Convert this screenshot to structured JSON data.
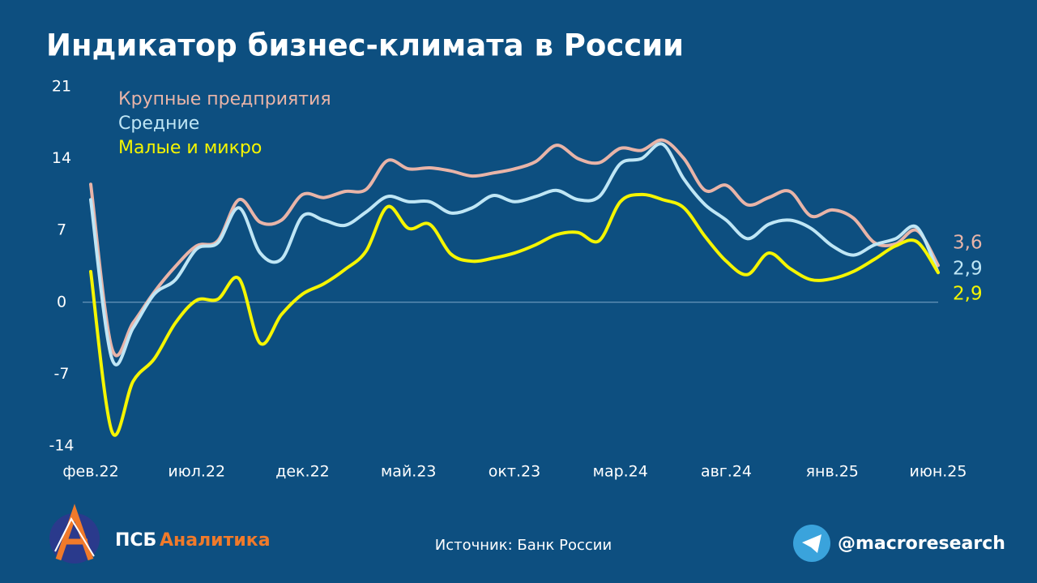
{
  "chart_data": {
    "type": "line",
    "title": "Индикатор бизнес-климата в России",
    "categories": [
      "фев.22",
      null,
      null,
      null,
      null,
      "июл.22",
      null,
      null,
      null,
      null,
      "дек.22",
      null,
      null,
      null,
      null,
      "май.23",
      null,
      null,
      null,
      null,
      "окт.23",
      null,
      null,
      null,
      null,
      "мар.24",
      null,
      null,
      null,
      null,
      "авг.24",
      null,
      null,
      null,
      null,
      "янв.25",
      null,
      null,
      null,
      null,
      "июн.25"
    ],
    "series": [
      {
        "name": "Крупные предприятия",
        "color": "#e8b4a8",
        "values": [
          11.5,
          -4.5,
          -2,
          1,
          3.5,
          5.5,
          6,
          10,
          7.8,
          8,
          10.5,
          10.2,
          10.8,
          11,
          13.8,
          13,
          13.1,
          12.8,
          12.3,
          12.6,
          13,
          13.7,
          15.3,
          14,
          13.6,
          15,
          14.8,
          15.8,
          14,
          10.9,
          11.4,
          9.5,
          10.2,
          10.8,
          8.4,
          9,
          8.2,
          5.8,
          5.7,
          7,
          3.6
        ],
        "value_labels": [
          null,
          null,
          null,
          null,
          null,
          null,
          null,
          null,
          null,
          null,
          null,
          null,
          null,
          null,
          null,
          null,
          null,
          null,
          null,
          null,
          null,
          null,
          null,
          null,
          null,
          null,
          null,
          null,
          null,
          null,
          null,
          null,
          null,
          null,
          null,
          null,
          null,
          null,
          null,
          null,
          "3,6"
        ]
      },
      {
        "name": "Средние",
        "color": "#bfe6f5",
        "values": [
          10,
          -5.5,
          -2.5,
          0.8,
          2.2,
          5.2,
          5.8,
          9.2,
          4.8,
          4.2,
          8.4,
          8,
          7.5,
          8.8,
          10.3,
          9.8,
          9.8,
          8.7,
          9.2,
          10.4,
          9.8,
          10.3,
          10.9,
          10,
          10.3,
          13.5,
          14,
          15.4,
          12,
          9.5,
          8,
          6.2,
          7.6,
          8,
          7.2,
          5.5,
          4.6,
          5.6,
          6.2,
          7.3,
          2.9
        ],
        "value_labels": [
          null,
          null,
          null,
          null,
          null,
          null,
          null,
          null,
          null,
          null,
          null,
          null,
          null,
          null,
          null,
          null,
          null,
          null,
          null,
          null,
          null,
          null,
          null,
          null,
          null,
          null,
          null,
          null,
          null,
          null,
          null,
          null,
          null,
          null,
          null,
          null,
          null,
          null,
          null,
          null,
          "2,9"
        ]
      },
      {
        "name": "Малые и микро",
        "color": "#f5f500",
        "values": [
          3,
          -12.6,
          -7.7,
          -5.5,
          -2,
          0.2,
          0.3,
          2.3,
          -4,
          -1.2,
          0.8,
          1.8,
          3.2,
          5,
          9.3,
          7.2,
          7.6,
          4.7,
          4,
          4.3,
          4.8,
          5.6,
          6.6,
          6.8,
          6,
          9.8,
          10.5,
          10,
          9.2,
          6.4,
          4,
          2.7,
          4.8,
          3.3,
          2.2,
          2.3,
          3,
          4.2,
          5.5,
          5.9,
          2.9
        ],
        "value_labels": [
          null,
          null,
          null,
          null,
          null,
          null,
          null,
          null,
          null,
          null,
          null,
          null,
          null,
          null,
          null,
          null,
          null,
          null,
          null,
          null,
          null,
          null,
          null,
          null,
          null,
          null,
          null,
          null,
          null,
          null,
          null,
          null,
          null,
          null,
          null,
          null,
          null,
          null,
          null,
          null,
          "2,9"
        ]
      }
    ],
    "ylim": [
      -14,
      21
    ],
    "yticks": [
      -14,
      -7,
      0,
      7,
      14,
      21
    ],
    "grid": false,
    "zero_line": true,
    "legend": "top-left"
  },
  "footer": {
    "brand": "ПСБ",
    "brand_accent": "Аналитика",
    "source": "Источник: Банк России",
    "handle": "@macroresearch"
  }
}
